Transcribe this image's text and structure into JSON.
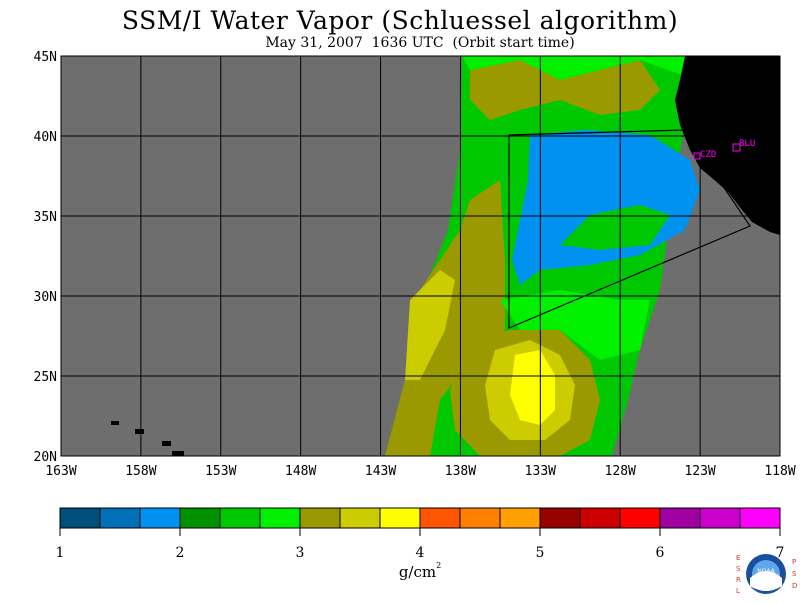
{
  "header": {
    "title": "SSM/I Water Vapor (Schluessel algorithm)",
    "subtitle": "May 31, 2007  1636 UTC  (Orbit start time)"
  },
  "map": {
    "lon_labels": [
      "163W",
      "158W",
      "153W",
      "148W",
      "143W",
      "138W",
      "133W",
      "128W",
      "123W",
      "118W"
    ],
    "lat_labels": [
      "45N",
      "40N",
      "35N",
      "30N",
      "25N",
      "20N"
    ],
    "lon_range": [
      -163,
      -118
    ],
    "lat_range": [
      20,
      45
    ],
    "station_labels": [
      "CZD",
      "BLU"
    ],
    "colors": {
      "no_data": "#6e6e6e",
      "land": "#000000",
      "station": "#ff00ff"
    }
  },
  "colorbar": {
    "ticks": [
      "1",
      "2",
      "3",
      "4",
      "5",
      "6",
      "7"
    ],
    "units": "g/cm",
    "units_sup": "2",
    "colors": [
      "#004f7a",
      "#0070b8",
      "#0092f0",
      "#009100",
      "#00c800",
      "#00f000",
      "#9a9a00",
      "#cccc00",
      "#ffff00",
      "#ff5500",
      "#ff8000",
      "#ffa000",
      "#990000",
      "#cc0000",
      "#ff0000",
      "#a000a0",
      "#cc00cc",
      "#ff00ff"
    ]
  },
  "logo": {
    "left_letters": "ESRL",
    "right_letters": "PSD",
    "center": "NOAA"
  }
}
